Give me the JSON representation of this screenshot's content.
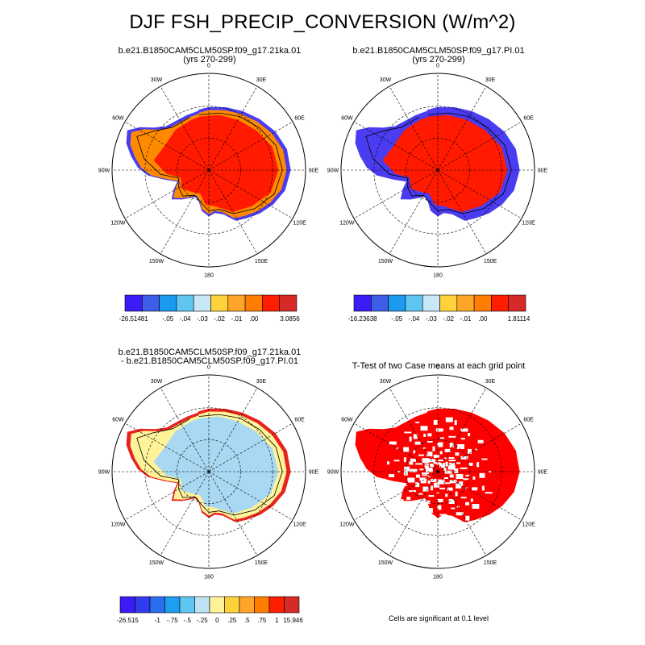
{
  "figure": {
    "title": "DJF FSH_PRECIP_CONVERSION (W/m^2)",
    "significance_note": "Cells are significant at 0.1 level"
  },
  "lon_labels": [
    "0",
    "30E",
    "60E",
    "90E",
    "120E",
    "150E",
    "180",
    "150W",
    "120W",
    "90W",
    "60W",
    "30W"
  ],
  "panels": [
    {
      "id": "p1",
      "title_line1": "b.e21.B1850CAM5CLM50SP.f09_g17.21ka.01",
      "title_line2": "(yrs 270-299)",
      "fill": "#ff1a00",
      "coast_fill": "#ff8a00",
      "edge_fill": "#4a3cf0"
    },
    {
      "id": "p2",
      "title_line1": "b.e21.B1850CAM5CLM50SP.f09_g17.PI.01",
      "title_line2": "(yrs 270-299)",
      "fill": "#ff1a00",
      "coast_fill": "#4a3cf0",
      "edge_fill": "#4a3cf0"
    },
    {
      "id": "p3",
      "title_line1": "b.e21.B1850CAM5CLM50SP.f09_g17.21ka.01",
      "title_line2": "- b.e21.B1850CAM5CLM50SP.f09_g17.PI.01",
      "fill": "#a9d8f2",
      "coast_fill": "#fff39a",
      "edge_fill": "#e8231f"
    },
    {
      "id": "p4",
      "title_line1": "T-Test of two Case means at each grid point",
      "title_line2": "",
      "fill": "#ff0000",
      "coast_fill": "#ff0000",
      "edge_fill": "#ff0000"
    }
  ],
  "colorbars": [
    {
      "id": "cb1",
      "colors": [
        "#3b1cf5",
        "#3e5ee8",
        "#1a9bf0",
        "#5fc6f3",
        "#c8e8f7",
        "#ffd23c",
        "#ffa52a",
        "#ff7d00",
        "#ff1e00",
        "#d62a28"
      ],
      "labels": [
        "-26.51481",
        "-.05",
        "-.04",
        "-.03",
        "-.02",
        "-.01",
        ".00",
        "3.0856"
      ]
    },
    {
      "id": "cb2",
      "colors": [
        "#3b1cf5",
        "#3e5ee8",
        "#1a9bf0",
        "#5fc6f3",
        "#c8e8f7",
        "#ffd23c",
        "#ffa52a",
        "#ff7d00",
        "#ff1e00",
        "#d62a28"
      ],
      "labels": [
        "-16.23638",
        "-.05",
        "-.04",
        "-.03",
        "-.02",
        "-.01",
        ".00",
        "1.81114"
      ]
    },
    {
      "id": "cb3",
      "colors": [
        "#3b1cf5",
        "#2f3cf0",
        "#2a6ef0",
        "#1e9ef0",
        "#5fc6f3",
        "#bde2f3",
        "#fff39a",
        "#ffd23c",
        "#ffa52a",
        "#ff7d00",
        "#ff1e00",
        "#d62a28"
      ],
      "labels": [
        "-26.515",
        "-1",
        "-.75",
        "-.5",
        "-.25",
        "0",
        ".25",
        ".5",
        ".75",
        "1",
        "15.946"
      ]
    }
  ]
}
